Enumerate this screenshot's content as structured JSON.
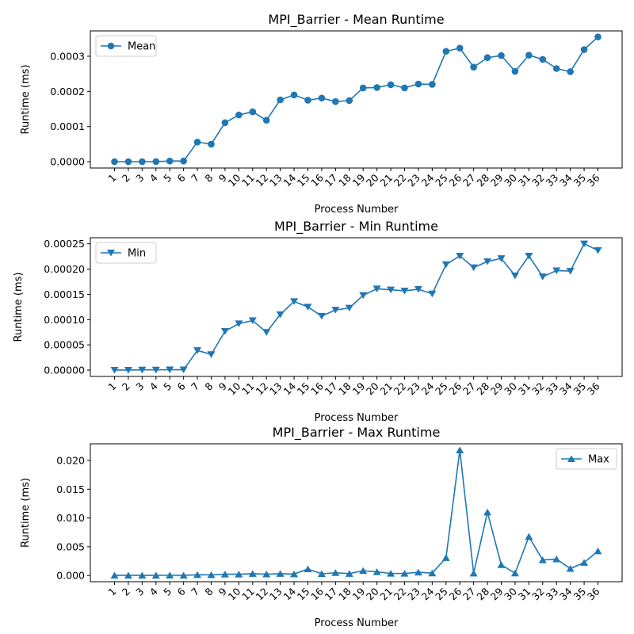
{
  "colors": {
    "series": "#1f77b4",
    "axis": "#000000",
    "legend_border": "#cccccc"
  },
  "chart_data": [
    {
      "type": "line",
      "title": "MPI_Barrier - Mean Runtime",
      "xlabel": "Process Number",
      "ylabel": "Runtime (ms)",
      "marker": "circle",
      "legend_position": "top-left",
      "grid": false,
      "x": [
        "1",
        "2",
        "3",
        "4",
        "5",
        "6",
        "7",
        "8",
        "9",
        "10",
        "11",
        "12",
        "13",
        "14",
        "15",
        "16",
        "17",
        "18",
        "19",
        "20",
        "21",
        "22",
        "23",
        "24",
        "25",
        "26",
        "27",
        "28",
        "29",
        "30",
        "31",
        "32",
        "33",
        "34",
        "35",
        "36"
      ],
      "ylim": [
        -1.78e-05,
        0.000372
      ],
      "yticks": [
        0.0,
        0.0001,
        0.0002,
        0.0003
      ],
      "ytick_labels": [
        "0.0000",
        "0.0001",
        "0.0002",
        "0.0003"
      ],
      "series": [
        {
          "name": "Mean",
          "values": [
            2e-07,
            2e-07,
            2e-07,
            3e-07,
            2e-06,
            2e-06,
            5.6e-05,
            5e-05,
            0.000111,
            0.000133,
            0.000142,
            0.000118,
            0.000176,
            0.00019,
            0.000175,
            0.000181,
            0.000171,
            0.000174,
            0.00021,
            0.000211,
            0.000219,
            0.00021,
            0.000221,
            0.00022,
            0.000314,
            0.000323,
            0.000269,
            0.000296,
            0.000302,
            0.000257,
            0.000303,
            0.000291,
            0.000265,
            0.000256,
            0.000319,
            0.000355
          ]
        }
      ]
    },
    {
      "type": "line",
      "title": "MPI_Barrier - Min Runtime",
      "xlabel": "Process Number",
      "ylabel": "Runtime (ms)",
      "marker": "triangle-down",
      "legend_position": "top-left",
      "grid": false,
      "x": [
        "1",
        "2",
        "3",
        "4",
        "5",
        "6",
        "7",
        "8",
        "9",
        "10",
        "11",
        "12",
        "13",
        "14",
        "15",
        "16",
        "17",
        "18",
        "19",
        "20",
        "21",
        "22",
        "23",
        "24",
        "25",
        "26",
        "27",
        "28",
        "29",
        "30",
        "31",
        "32",
        "33",
        "34",
        "35",
        "36"
      ],
      "ylim": [
        -1.25e-05,
        0.000262
      ],
      "yticks": [
        0.0,
        5e-05,
        0.0001,
        0.00015,
        0.0002,
        0.00025
      ],
      "ytick_labels": [
        "0.00000",
        "0.00005",
        "0.00010",
        "0.00015",
        "0.00020",
        "0.00025"
      ],
      "series": [
        {
          "name": "Min",
          "values": [
            1e-07,
            1e-07,
            5e-07,
            5e-07,
            8e-07,
            8e-07,
            3.9e-05,
            3.1e-05,
            7.7e-05,
            9.2e-05,
            9.8e-05,
            7.5e-05,
            0.00011,
            0.000136,
            0.000125,
            0.000107,
            0.000119,
            0.000123,
            0.000148,
            0.000161,
            0.000159,
            0.000157,
            0.00016,
            0.000151,
            0.000209,
            0.000226,
            0.000203,
            0.000215,
            0.000221,
            0.000187,
            0.000226,
            0.000185,
            0.000197,
            0.000196,
            0.00025,
            0.000237
          ]
        }
      ]
    },
    {
      "type": "line",
      "title": "MPI_Barrier - Max Runtime",
      "xlabel": "Process Number",
      "ylabel": "Runtime (ms)",
      "marker": "triangle-up",
      "legend_position": "top-right",
      "grid": false,
      "x": [
        "1",
        "2",
        "3",
        "4",
        "5",
        "6",
        "7",
        "8",
        "9",
        "10",
        "11",
        "12",
        "13",
        "14",
        "15",
        "16",
        "17",
        "18",
        "19",
        "20",
        "21",
        "22",
        "23",
        "24",
        "25",
        "26",
        "27",
        "28",
        "29",
        "30",
        "31",
        "32",
        "33",
        "34",
        "35",
        "36"
      ],
      "ylim": [
        -0.00108,
        0.0229
      ],
      "yticks": [
        0.0,
        0.005,
        0.01,
        0.015,
        0.02
      ],
      "ytick_labels": [
        "0.000",
        "0.005",
        "0.010",
        "0.015",
        "0.020"
      ],
      "series": [
        {
          "name": "Max",
          "values": [
            3e-05,
            3e-05,
            3e-05,
            3e-05,
            4e-05,
            3e-05,
            0.00012,
            0.00011,
            0.00022,
            0.00022,
            0.00031,
            0.00023,
            0.00031,
            0.00025,
            0.00112,
            0.0003,
            0.00047,
            0.00032,
            0.00083,
            0.00063,
            0.00035,
            0.00035,
            0.00056,
            0.00041,
            0.00307,
            0.0218,
            0.00038,
            0.011,
            0.00185,
            0.0004,
            0.00675,
            0.0027,
            0.00285,
            0.0012,
            0.00225,
            0.00425
          ]
        }
      ]
    }
  ]
}
